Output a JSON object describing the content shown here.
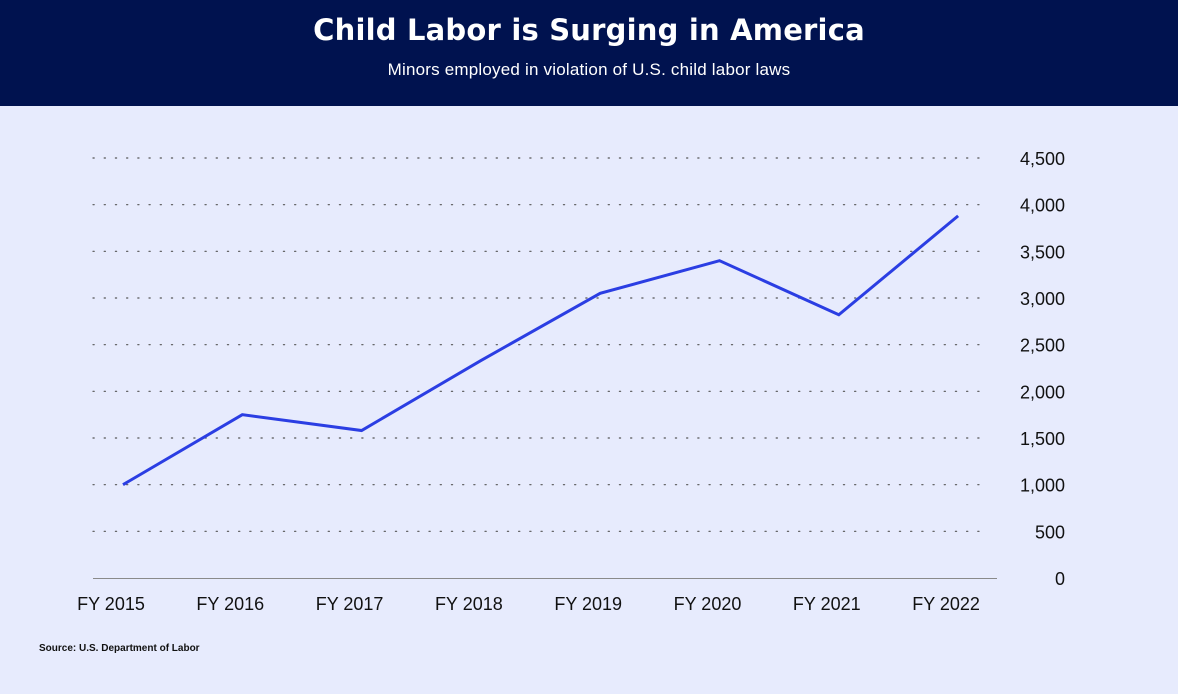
{
  "chart_data": {
    "type": "line",
    "title": "Child Labor is Surging in America",
    "subtitle": "Minors employed in violation of U.S. child labor laws",
    "categories": [
      "FY 2015",
      "FY 2016",
      "FY 2017",
      "FY 2018",
      "FY 2019",
      "FY 2020",
      "FY 2021",
      "FY 2022"
    ],
    "series": [
      {
        "values": [
          1000,
          1750,
          1580,
          2330,
          3050,
          3400,
          2820,
          3880
        ]
      }
    ],
    "ylim": [
      0,
      4500
    ],
    "yticks": [
      0,
      500,
      1000,
      1500,
      2000,
      2500,
      3000,
      3500,
      4000,
      4500
    ],
    "ytick_labels": [
      "0",
      "500",
      "1,000",
      "1,500",
      "2,000",
      "2,500",
      "3,000",
      "3,500",
      "4,000",
      "4,500"
    ],
    "y_axis_position": "right",
    "grid": "dotted horizontal",
    "line_color": "#2b3ee3"
  },
  "header": {
    "background": "#00124f"
  },
  "source": "Source: U.S. Department of Labor"
}
